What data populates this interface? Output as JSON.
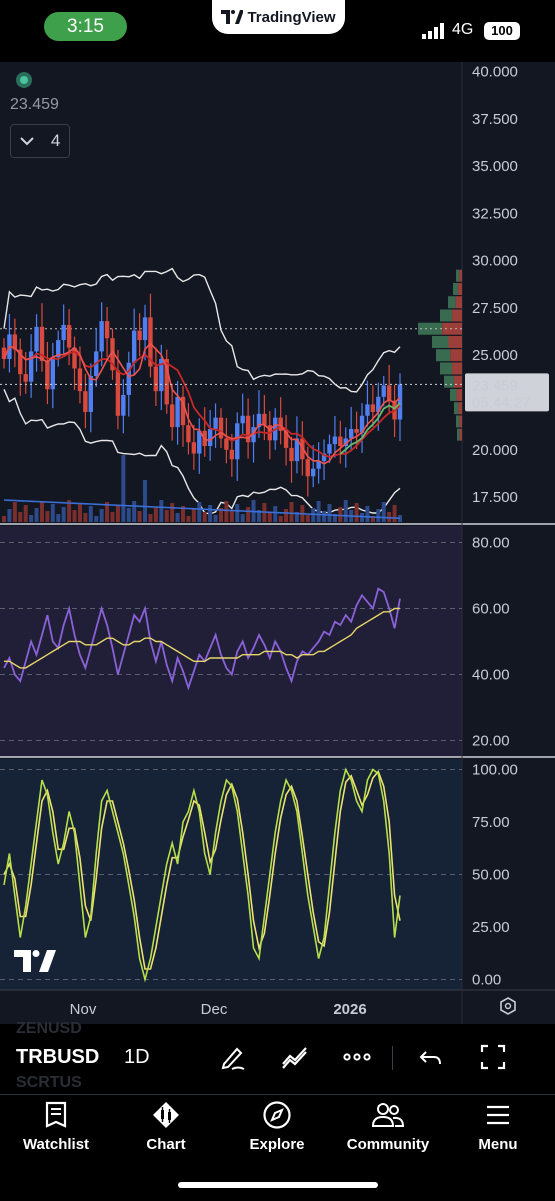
{
  "status_bar": {
    "time": "3:15",
    "app_badge": "TradingView",
    "network": "4G",
    "battery": "100"
  },
  "chart_header": {
    "last_value": "23.459",
    "indicator_count": "4"
  },
  "price_axis": {
    "labels": [
      "40.000",
      "37.500",
      "35.000",
      "32.500",
      "30.000",
      "27.500",
      "25.000",
      "22.500",
      "20.000",
      "17.500"
    ],
    "last_price": "23.459",
    "countdown": "05:44:27"
  },
  "rsi_axis": {
    "labels": [
      "80.00",
      "60.00",
      "40.00",
      "20.00"
    ]
  },
  "stoch_axis": {
    "labels": [
      "100.00",
      "75.00",
      "50.00",
      "25.00",
      "0.00"
    ]
  },
  "time_axis": {
    "labels": [
      "Nov",
      "Dec",
      "2026"
    ]
  },
  "toolbar": {
    "symbol": "TRBUSD",
    "interval": "1D",
    "ghost_symbol_above": "ZENUSD",
    "ghost_symbol_below": "SCRTUS"
  },
  "nav": {
    "items": [
      {
        "label": "Watchlist",
        "icon": "book-icon"
      },
      {
        "label": "Chart",
        "icon": "candles-icon"
      },
      {
        "label": "Explore",
        "icon": "compass-icon"
      },
      {
        "label": "Community",
        "icon": "people-icon"
      },
      {
        "label": "Menu",
        "icon": "hamburger-icon"
      }
    ]
  },
  "colors": {
    "background": "#131722",
    "up": "#4f7ff0",
    "down": "#d94a3e",
    "rsi": "#8a62d8",
    "rsi_ma": "#e6d56a",
    "stoch_k": "#b5e04a",
    "stoch_d": "#f0e070"
  },
  "chart_data": [
    {
      "type": "candlestick",
      "title": "TRBUSD 1D",
      "xlabel": "",
      "ylabel": "",
      "ylim": [
        16.5,
        40.5
      ],
      "x_ticks": [
        "Nov",
        "Dec",
        "2026"
      ],
      "close": [
        24.8,
        26.1,
        25.3,
        24.0,
        23.6,
        25.2,
        26.5,
        24.7,
        23.2,
        24.9,
        25.8,
        26.6,
        25.4,
        24.3,
        23.1,
        22.0,
        23.9,
        25.2,
        26.8,
        25.9,
        24.2,
        21.8,
        22.9,
        24.6,
        26.3,
        25.8,
        27.0,
        24.4,
        23.1,
        24.8,
        22.4,
        21.2,
        22.8,
        21.3,
        20.4,
        19.8,
        21.0,
        20.2,
        21.1,
        21.7,
        20.6,
        20.0,
        19.5,
        21.4,
        21.8,
        20.4,
        21.2,
        21.9,
        21.3,
        20.5,
        21.7,
        21.0,
        20.1,
        19.4,
        20.6,
        19.5,
        18.6,
        19.0,
        19.4,
        19.8,
        20.3,
        20.7,
        20.2,
        20.6,
        21.1,
        20.9,
        21.8,
        22.4,
        22.0,
        22.8,
        23.4,
        22.6,
        21.6,
        23.459
      ],
      "volume_visible": true,
      "bollinger_bands": true,
      "moving_averages": 2
    },
    {
      "type": "line",
      "title": "RSI",
      "ylim": [
        15,
        85
      ],
      "series": [
        {
          "name": "RSI",
          "values": [
            42,
            45,
            40,
            38,
            44,
            50,
            46,
            52,
            58,
            50,
            48,
            55,
            60,
            52,
            46,
            42,
            48,
            54,
            60,
            55,
            48,
            40,
            46,
            52,
            58,
            56,
            60,
            50,
            44,
            50,
            43,
            38,
            45,
            41,
            36,
            41,
            46,
            44,
            48,
            52,
            46,
            42,
            40,
            47,
            50,
            45,
            48,
            52,
            49,
            45,
            50,
            47,
            42,
            38,
            44,
            47,
            46,
            48,
            50,
            53,
            52,
            56,
            55,
            58,
            56,
            61,
            64,
            62,
            60,
            66,
            65,
            60,
            54,
            63
          ]
        },
        {
          "name": "RSI MA",
          "values": [
            44,
            44,
            43,
            42,
            42,
            43,
            44,
            45,
            46,
            47,
            48,
            49,
            50,
            50,
            50,
            49,
            49,
            49,
            50,
            51,
            51,
            50,
            49,
            49,
            50,
            50,
            51,
            51,
            50,
            50,
            49,
            48,
            47,
            46,
            45,
            44,
            44,
            44,
            45,
            45,
            45,
            45,
            45,
            45,
            46,
            46,
            46,
            46,
            47,
            47,
            47,
            47,
            46,
            46,
            45,
            46,
            46,
            46,
            47,
            47,
            48,
            49,
            50,
            51,
            52,
            54,
            55,
            56,
            57,
            58,
            59,
            59,
            60,
            60
          ]
        }
      ]
    },
    {
      "type": "line",
      "title": "Stoch RSI",
      "ylim": [
        -5,
        105
      ],
      "series": [
        {
          "name": "%K",
          "values": [
            45,
            60,
            40,
            20,
            35,
            55,
            75,
            95,
            88,
            70,
            55,
            65,
            80,
            70,
            45,
            20,
            30,
            60,
            85,
            90,
            80,
            70,
            60,
            45,
            30,
            10,
            0,
            10,
            25,
            40,
            55,
            65,
            55,
            75,
            80,
            90,
            80,
            60,
            50,
            70,
            85,
            95,
            92,
            80,
            60,
            40,
            15,
            10,
            30,
            50,
            70,
            85,
            95,
            90,
            80,
            60,
            40,
            25,
            10,
            20,
            45,
            70,
            90,
            100,
            95,
            85,
            80,
            95,
            100,
            98,
            85,
            60,
            20,
            40
          ]
        },
        {
          "name": "%D",
          "values": [
            50,
            55,
            48,
            30,
            30,
            45,
            65,
            85,
            90,
            80,
            62,
            62,
            72,
            72,
            58,
            35,
            28,
            48,
            72,
            85,
            85,
            75,
            65,
            52,
            38,
            20,
            5,
            5,
            15,
            30,
            45,
            58,
            58,
            68,
            76,
            85,
            83,
            70,
            56,
            62,
            76,
            88,
            93,
            86,
            70,
            50,
            28,
            15,
            22,
            40,
            60,
            77,
            88,
            92,
            85,
            68,
            50,
            32,
            18,
            16,
            32,
            56,
            80,
            94,
            97,
            90,
            83,
            88,
            96,
            99,
            92,
            75,
            40,
            28
          ]
        }
      ]
    }
  ]
}
